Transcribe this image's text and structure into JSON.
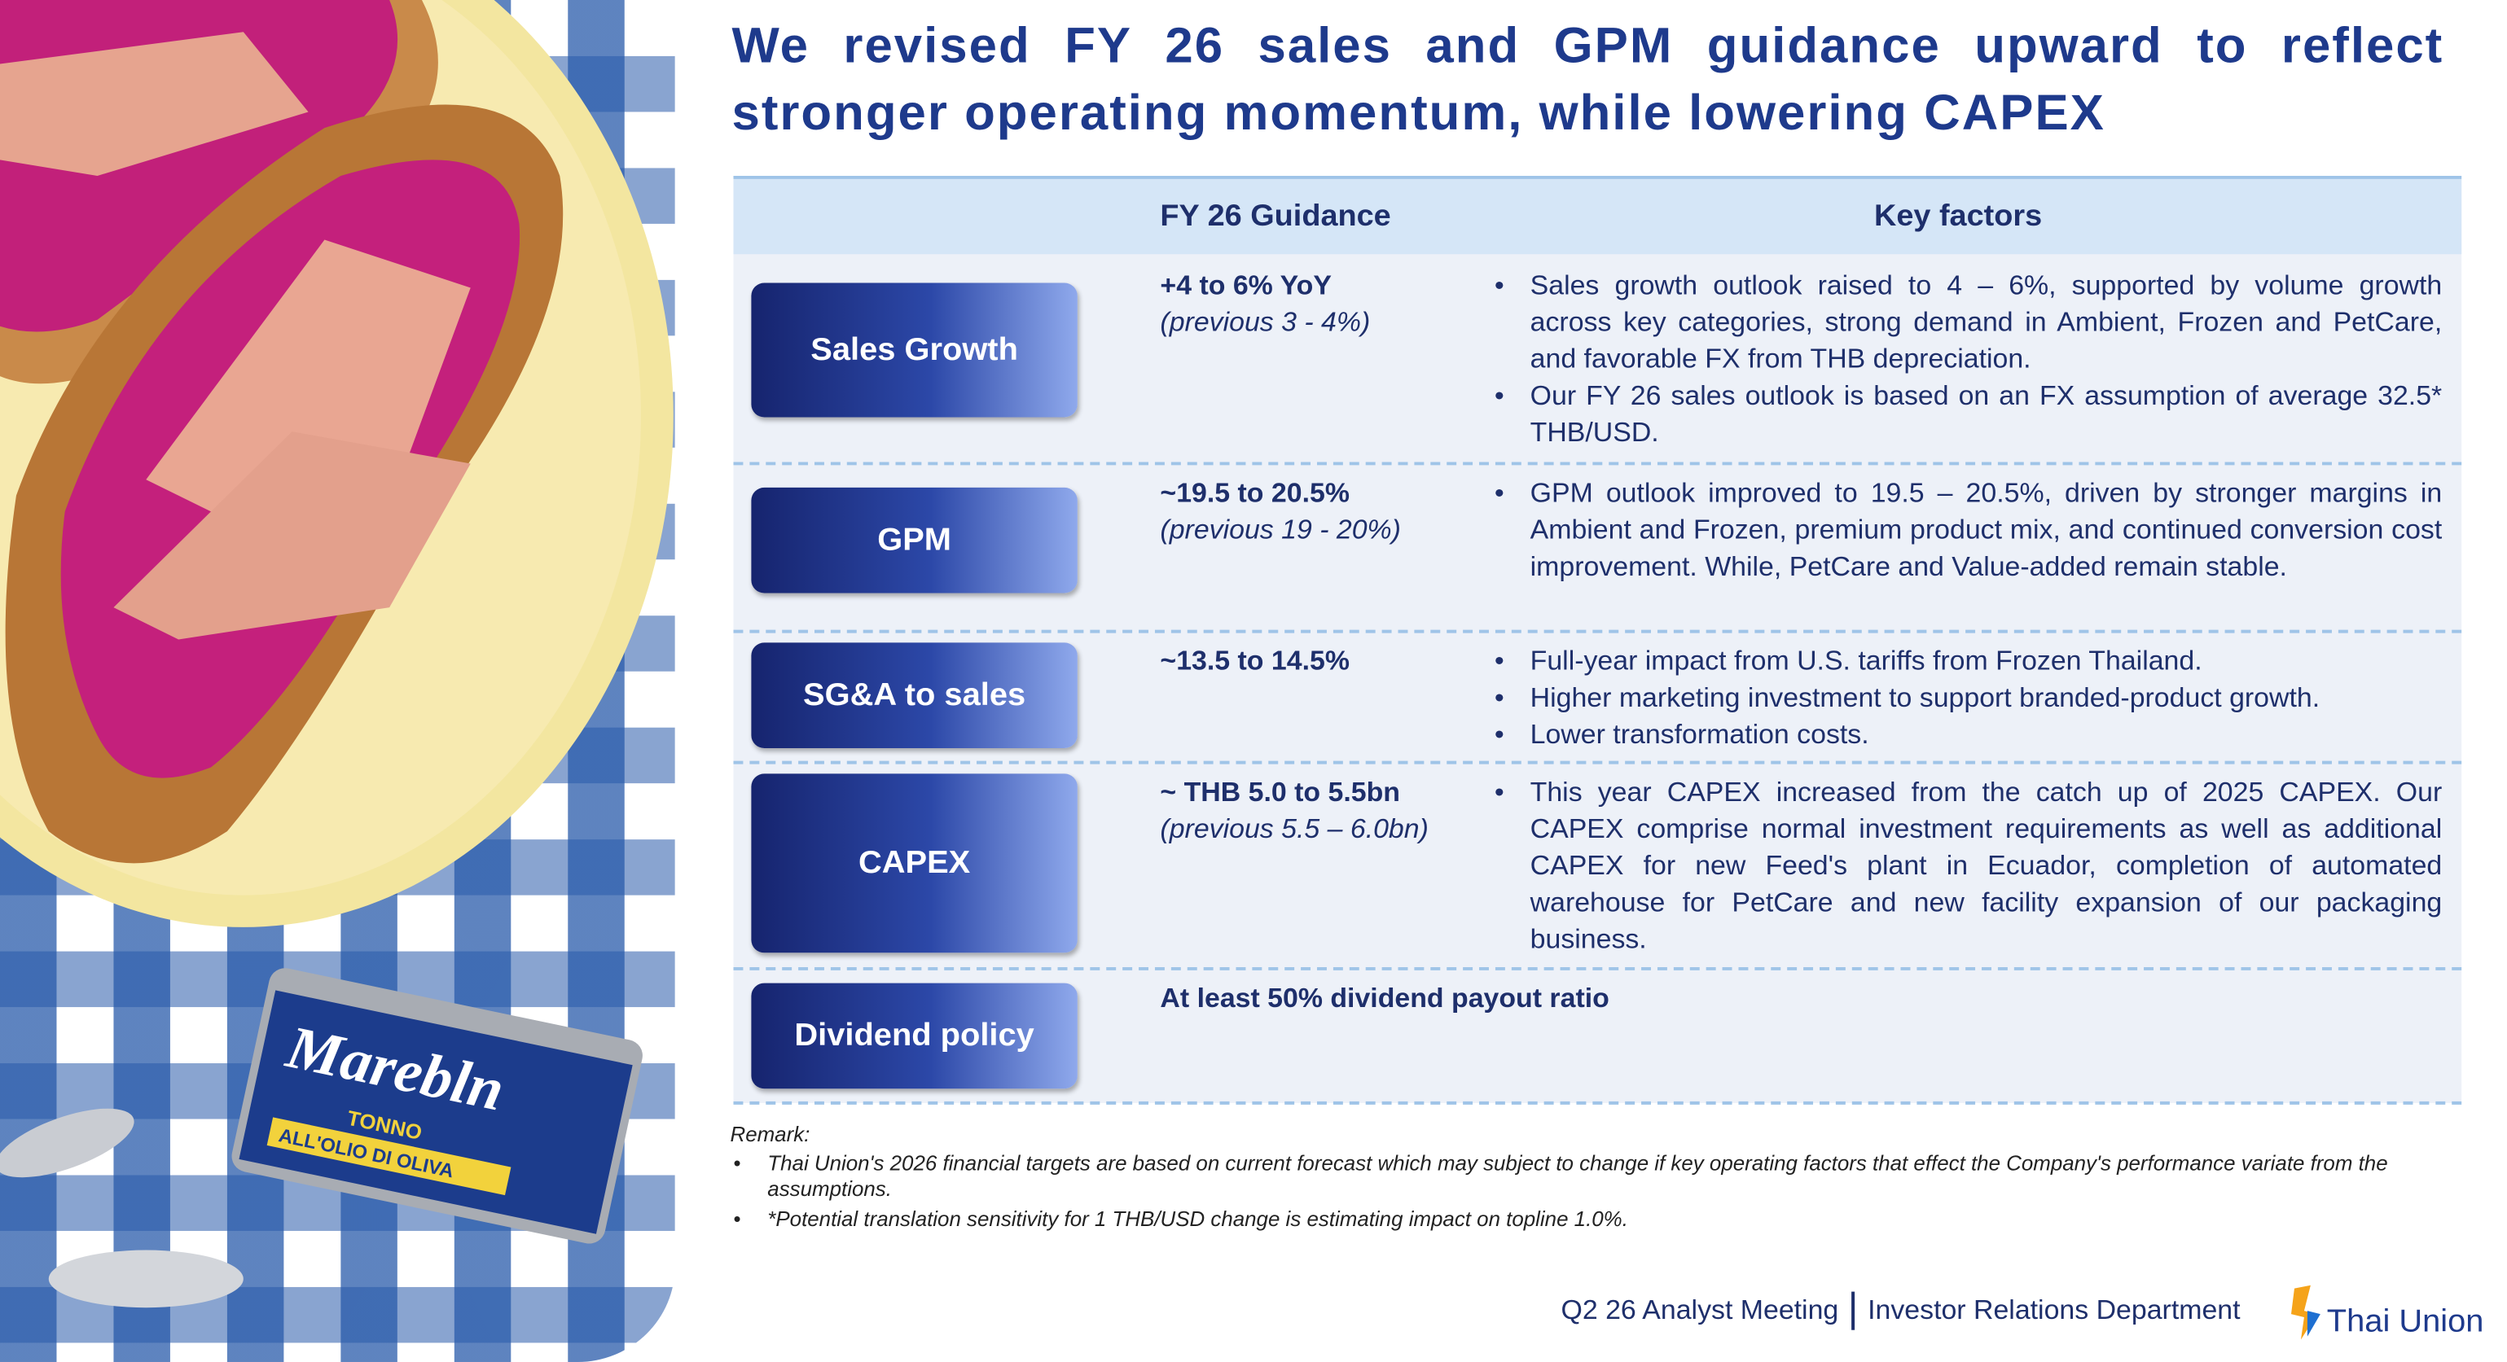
{
  "header": {
    "title": "We revised FY 26 sales and GPM guidance upward to reflect stronger operating momentum, while lowering CAPEX"
  },
  "image": {
    "brand": "Marebln",
    "product": "TONNO",
    "subtitle": "ALL'OLIO DI OLIVA"
  },
  "table": {
    "columns": [
      "FY 26 Guidance",
      "Key factors"
    ],
    "rows": [
      {
        "label": "Sales Growth",
        "guidance": "+4 to 6% YoY",
        "previous": "(previous 3 - 4%)",
        "factors": [
          "Sales growth outlook raised to 4 – 6%, supported by volume growth across key categories, strong demand in Ambient, Frozen and PetCare, and favorable FX from THB depreciation.",
          "Our FY 26 sales outlook is based on an FX assumption of average 32.5* THB/USD."
        ]
      },
      {
        "label": "GPM",
        "guidance": "~19.5 to 20.5%",
        "previous": "(previous 19 - 20%)",
        "factors": [
          "GPM outlook improved to 19.5 – 20.5%, driven by stronger margins in Ambient and Frozen, premium product mix, and continued conversion cost improvement. While, PetCare and Value-added remain stable."
        ]
      },
      {
        "label": "SG&A to sales",
        "guidance": "~13.5 to 14.5%",
        "factors": [
          "Full-year impact from U.S. tariffs from Frozen Thailand.",
          "Higher marketing investment to support branded-product growth.",
          "Lower transformation costs."
        ]
      },
      {
        "label": "CAPEX",
        "guidance": "~ THB 5.0 to 5.5bn",
        "previous": "(previous 5.5 – 6.0bn)",
        "factors": [
          "This year CAPEX increased from the catch up of 2025 CAPEX. Our CAPEX comprise normal investment requirements as well as additional CAPEX for new Feed's plant in Ecuador, completion of automated warehouse for PetCare and new facility expansion of our packaging business."
        ]
      },
      {
        "label": "Dividend policy",
        "guidance": "At least 50% dividend payout ratio"
      }
    ]
  },
  "remarks": {
    "title": "Remark:",
    "items": [
      "Thai Union's 2026 financial targets are based on current forecast which may subject to change if key operating factors that effect the Company's performance variate from the assumptions.",
      "*Potential translation sensitivity for 1 THB/USD change is estimating impact on topline 1.0%."
    ]
  },
  "footer": {
    "meeting": "Q2 26 Analyst Meeting",
    "department": "Investor Relations Department",
    "logo": "Thai Union"
  }
}
